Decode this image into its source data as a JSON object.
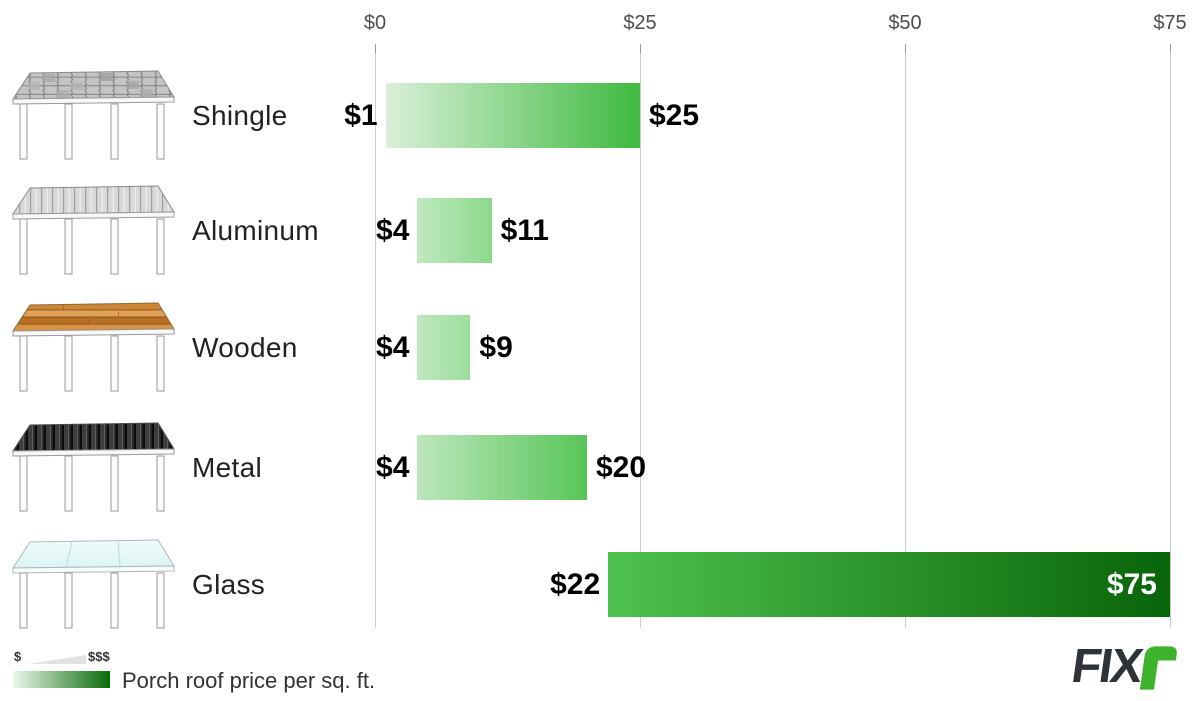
{
  "chart_data": {
    "type": "bar",
    "subtype": "horizontal-range-bars",
    "title": "Porch roof price per sq. ft.",
    "xlim": [
      0,
      75
    ],
    "x_ticks": [
      "$0",
      "$25",
      "$50",
      "$75"
    ],
    "x_tick_values": [
      0,
      25,
      50,
      75
    ],
    "grid": true,
    "categories": [
      "Shingle",
      "Aluminum",
      "Wooden",
      "Metal",
      "Glass"
    ],
    "series": [
      {
        "name": "Shingle",
        "min": 1,
        "max": 25,
        "min_label": "$1",
        "max_label": "$25",
        "max_label_inside": false,
        "bar_color_start": "#d9f0d9",
        "bar_color_end": "#3fba3f"
      },
      {
        "name": "Aluminum",
        "min": 4,
        "max": 11,
        "min_label": "$4",
        "max_label": "$11",
        "max_label_inside": false,
        "bar_color_start": "#bfe8bf",
        "bar_color_end": "#8dd88d"
      },
      {
        "name": "Wooden",
        "min": 4,
        "max": 9,
        "min_label": "$4",
        "max_label": "$9",
        "max_label_inside": false,
        "bar_color_start": "#bfe8bf",
        "bar_color_end": "#9bdd9b"
      },
      {
        "name": "Metal",
        "min": 4,
        "max": 20,
        "min_label": "$4",
        "max_label": "$20",
        "max_label_inside": false,
        "bar_color_start": "#bde7bd",
        "bar_color_end": "#58c558"
      },
      {
        "name": "Glass",
        "min": 22,
        "max": 75,
        "min_label": "$22",
        "max_label": "$75",
        "max_label_inside": true,
        "bar_color_start": "#4ec24e",
        "bar_color_end": "#096409"
      }
    ]
  },
  "legend": {
    "low_label": "$",
    "high_label": "$$$"
  },
  "logo": {
    "text": "FIX",
    "suffix": "r"
  },
  "colors": {
    "gridline": "#cccccc",
    "tick_text": "#4d4d4d",
    "legend_gradient_start": "#ebf7eb",
    "legend_gradient_end": "#0a6b0a",
    "logo_dark": "#2e3338",
    "logo_green": "#3db32c"
  }
}
